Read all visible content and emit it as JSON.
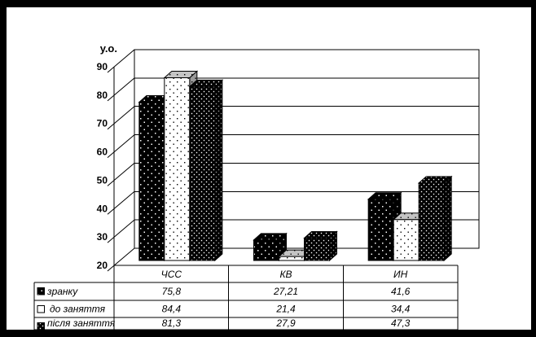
{
  "window": {
    "background": "#ffffff",
    "frame_color": "#000000"
  },
  "chart_data": {
    "type": "bar",
    "style": "3d-clustered-column",
    "title": "",
    "xlabel": "",
    "ylabel": "у.о.",
    "categories": [
      "ЧСС",
      "КВ",
      "ИН"
    ],
    "series": [
      {
        "name": "зранку",
        "values": [
          75.8,
          27.21,
          41.6
        ],
        "labels": [
          "75,8",
          "27,21",
          "41,6"
        ],
        "swatch": "black-with-white-dots"
      },
      {
        "name": "до заняття",
        "values": [
          84.4,
          21.4,
          34.4
        ],
        "labels": [
          "84,4",
          "21,4",
          "34,4"
        ],
        "swatch": "white"
      },
      {
        "name": "після заняття",
        "values": [
          81.3,
          27.9,
          47.3
        ],
        "labels": [
          "81,3",
          "27,9",
          "47,3"
        ],
        "swatch": "black-with-dense-white-dots"
      }
    ],
    "ylim": [
      20,
      90
    ],
    "ytick_step": 10,
    "ytick_labels": [
      "20",
      "30",
      "40",
      "50",
      "60",
      "70",
      "80",
      "90"
    ],
    "grid": true,
    "legend_position": "left-column-of-data-table",
    "colors": {
      "ink": "#000000",
      "background": "#ffffff",
      "series2_top": "#c4c4c4",
      "series2_side": "#9a9a9a"
    }
  }
}
